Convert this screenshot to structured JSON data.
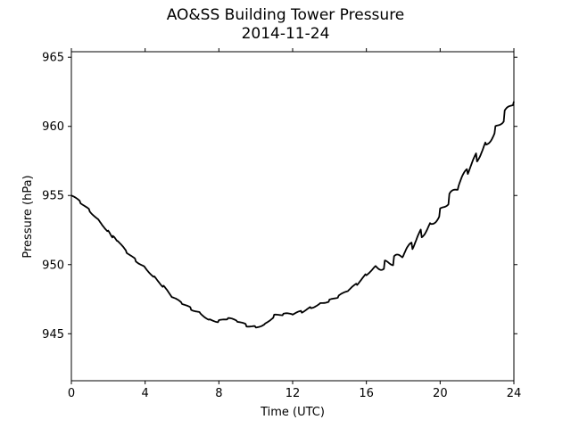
{
  "chart_data": {
    "type": "line",
    "title": "AO&SS Building Tower Pressure",
    "subtitle": "2014-11-24",
    "xlabel": "Time (UTC)",
    "ylabel": "Pressure (hPa)",
    "xlim": [
      0,
      24
    ],
    "ylim": [
      941.6,
      965.4
    ],
    "xticks": [
      0,
      4,
      8,
      12,
      16,
      20,
      24
    ],
    "yticks": [
      945,
      950,
      955,
      960,
      965
    ],
    "grid": false,
    "line_color": "#000000",
    "series": [
      {
        "x": [
          0,
          0.5,
          1,
          1.5,
          2,
          2.25,
          2.5,
          3,
          3.5,
          4,
          4.5,
          5,
          5.5,
          6,
          6.5,
          7,
          7.5,
          8,
          8.5,
          9,
          9.5,
          10,
          10.5,
          11,
          11.5,
          12,
          12.5,
          13,
          13.5,
          14,
          14.5,
          15,
          15.5,
          16,
          16.5,
          17,
          17.5,
          18,
          18.5,
          19,
          19.5,
          20,
          20.5,
          21,
          21.5,
          22,
          22.5,
          23,
          23.5,
          24
        ],
        "y": [
          955.0,
          954.5,
          953.9,
          953.2,
          952.4,
          952.0,
          951.7,
          950.9,
          950.3,
          949.8,
          949.1,
          948.4,
          947.6,
          947.2,
          946.8,
          946.5,
          946.0,
          945.9,
          946.1,
          945.9,
          945.6,
          945.5,
          945.7,
          946.3,
          946.4,
          946.4,
          946.6,
          946.9,
          947.2,
          947.4,
          947.7,
          948.1,
          948.6,
          949.3,
          949.9,
          950.0,
          950.3,
          950.6,
          951.4,
          952.3,
          953.0,
          953.8,
          954.8,
          955.6,
          956.8,
          957.8,
          958.8,
          959.8,
          960.8,
          961.8
        ]
      }
    ]
  }
}
